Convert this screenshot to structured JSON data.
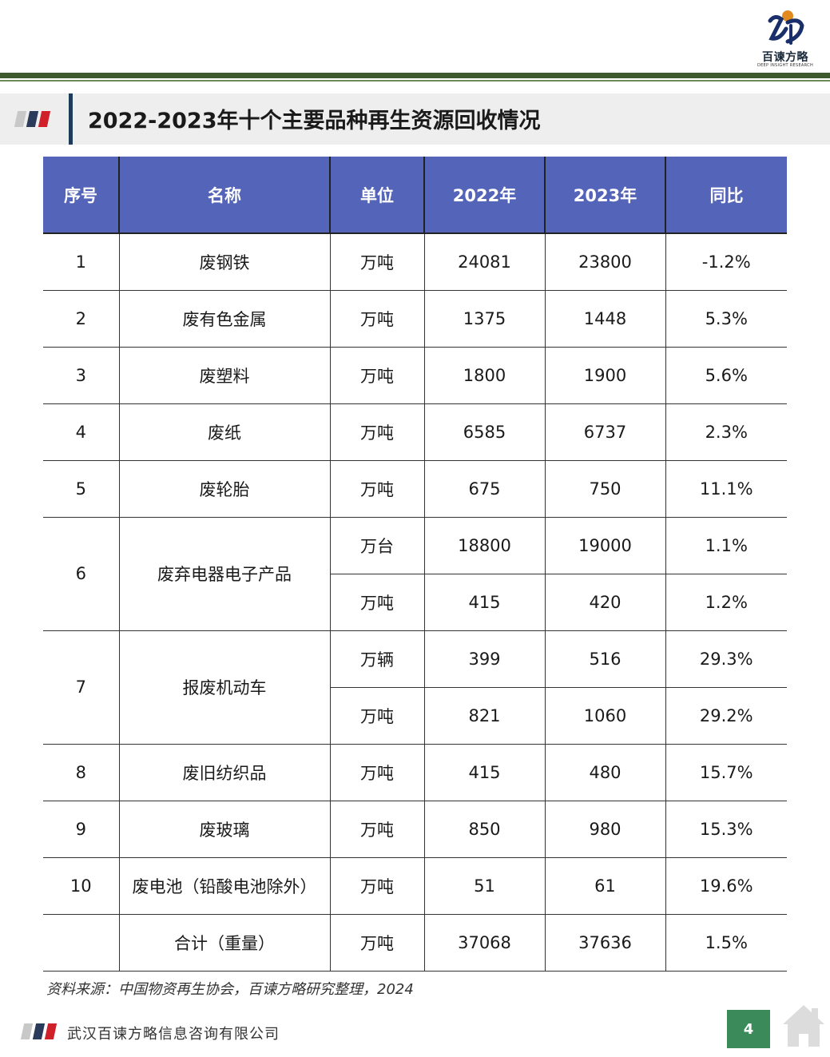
{
  "header": {
    "brand_name": "百谏方略",
    "brand_sub": "DEEP INSIGHT RESEARCH"
  },
  "title": "2022-2023年十个主要品种再生资源回收情况",
  "table": {
    "headers": [
      "序号",
      "名称",
      "单位",
      "2022年",
      "2023年",
      "同比"
    ],
    "rows": [
      {
        "no": "1",
        "name": "废钢铁",
        "unit": "万吨",
        "y2022": "24081",
        "y2023": "23800",
        "yoy": "-1.2%"
      },
      {
        "no": "2",
        "name": "废有色金属",
        "unit": "万吨",
        "y2022": "1375",
        "y2023": "1448",
        "yoy": "5.3%"
      },
      {
        "no": "3",
        "name": "废塑料",
        "unit": "万吨",
        "y2022": "1800",
        "y2023": "1900",
        "yoy": "5.6%"
      },
      {
        "no": "4",
        "name": "废纸",
        "unit": "万吨",
        "y2022": "6585",
        "y2023": "6737",
        "yoy": "2.3%"
      },
      {
        "no": "5",
        "name": "废轮胎",
        "unit": "万吨",
        "y2022": "675",
        "y2023": "750",
        "yoy": "11.1%"
      },
      {
        "no": "6",
        "name": "废弃电器电子产品",
        "unit": "万台",
        "y2022": "18800",
        "y2023": "19000",
        "yoy": "1.1%"
      },
      {
        "unit": "万吨",
        "y2022": "415",
        "y2023": "420",
        "yoy": "1.2%"
      },
      {
        "no": "7",
        "name": "报废机动车",
        "unit": "万辆",
        "y2022": "399",
        "y2023": "516",
        "yoy": "29.3%"
      },
      {
        "unit": "万吨",
        "y2022": "821",
        "y2023": "1060",
        "yoy": "29.2%"
      },
      {
        "no": "8",
        "name": "废旧纺织品",
        "unit": "万吨",
        "y2022": "415",
        "y2023": "480",
        "yoy": "15.7%"
      },
      {
        "no": "9",
        "name": "废玻璃",
        "unit": "万吨",
        "y2022": "850",
        "y2023": "980",
        "yoy": "15.3%"
      },
      {
        "no": "10",
        "name": "废电池（铅酸电池除外）",
        "unit": "万吨",
        "y2022": "51",
        "y2023": "61",
        "yoy": "19.6%"
      },
      {
        "no": "",
        "name": "合计（重量）",
        "unit": "万吨",
        "y2022": "37068",
        "y2023": "37636",
        "yoy": "1.5%"
      }
    ]
  },
  "source": "资料来源：中国物资再生协会，百谏方略研究整理，2024",
  "footer": {
    "company": "武汉百谏方略信息咨询有限公司",
    "page_number": "4"
  },
  "colors": {
    "header_fill": "#5464b8",
    "rule_green": "#3d5a2e",
    "page_box": "#3a8a5a",
    "flag_red": "#d0202a",
    "flag_navy": "#2a3a5a"
  }
}
